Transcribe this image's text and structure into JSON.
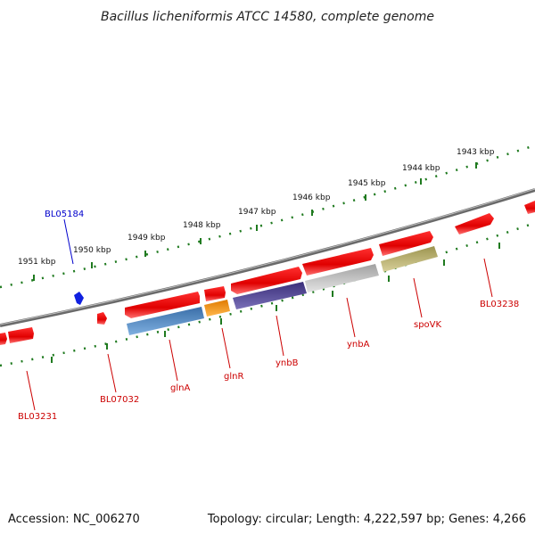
{
  "title": "Bacillus licheniformis ATCC 14580, complete genome",
  "footer": {
    "accession": "Accession: NC_006270",
    "topology": "Topology: circular; Length: 4,222,597 bp; Genes: 4,266"
  },
  "scale_labels": [
    "1951 kbp",
    "1950 kbp",
    "1949 kbp",
    "1948 kbp",
    "1947 kbp",
    "1946 kbp",
    "1945 kbp",
    "1944 kbp",
    "1943 kbp"
  ],
  "gene_labels": {
    "bl05184": "BL05184",
    "bl03231": "BL03231",
    "bl07032": "BL07032",
    "glnA": "glnA",
    "glnR": "glnR",
    "ynbB": "ynbB",
    "ynbA": "ynbA",
    "spoVK": "spoVK",
    "bl03238": "BL03238"
  },
  "colors": {
    "backbone": "#7a7a7a",
    "scale": "#1f7a1f",
    "gene_forward": "#ee1111",
    "label_red": "#cc0000",
    "label_blue": "#0000cc",
    "glnA": "#4a82b8",
    "glnR": "#e88a10",
    "ynbB": "#4a3f8c",
    "ynbA": "#b8b8b8",
    "spoVK": "#b5ad6a",
    "blue_gene": "#1020e0"
  }
}
